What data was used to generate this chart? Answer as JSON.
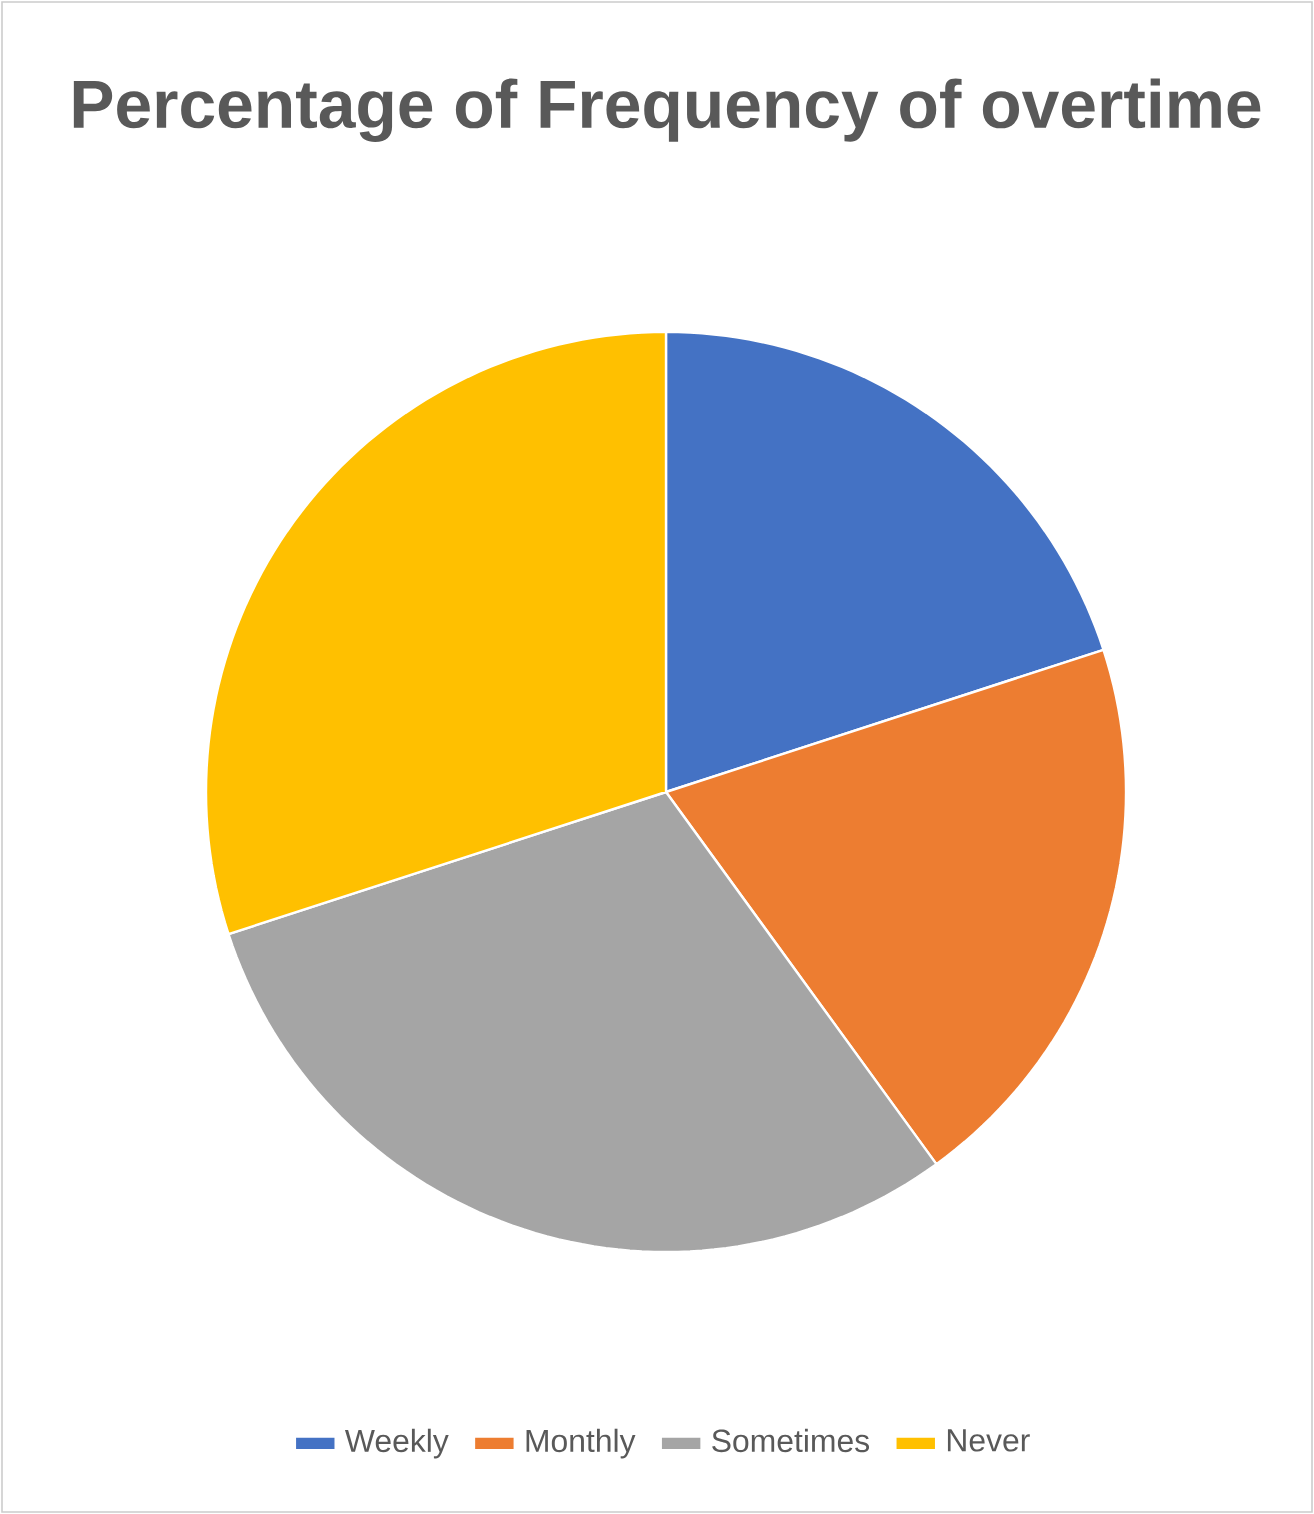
{
  "chart_data": {
    "type": "pie",
    "title": "Percentage of Frequency of overtime",
    "categories": [
      "Weekly",
      "Monthly",
      "Sometimes",
      "Never"
    ],
    "values": [
      20,
      20,
      30,
      30
    ],
    "colors": [
      "#4472c4",
      "#ed7d31",
      "#a5a5a5",
      "#ffc000"
    ],
    "legend": "bottom"
  }
}
